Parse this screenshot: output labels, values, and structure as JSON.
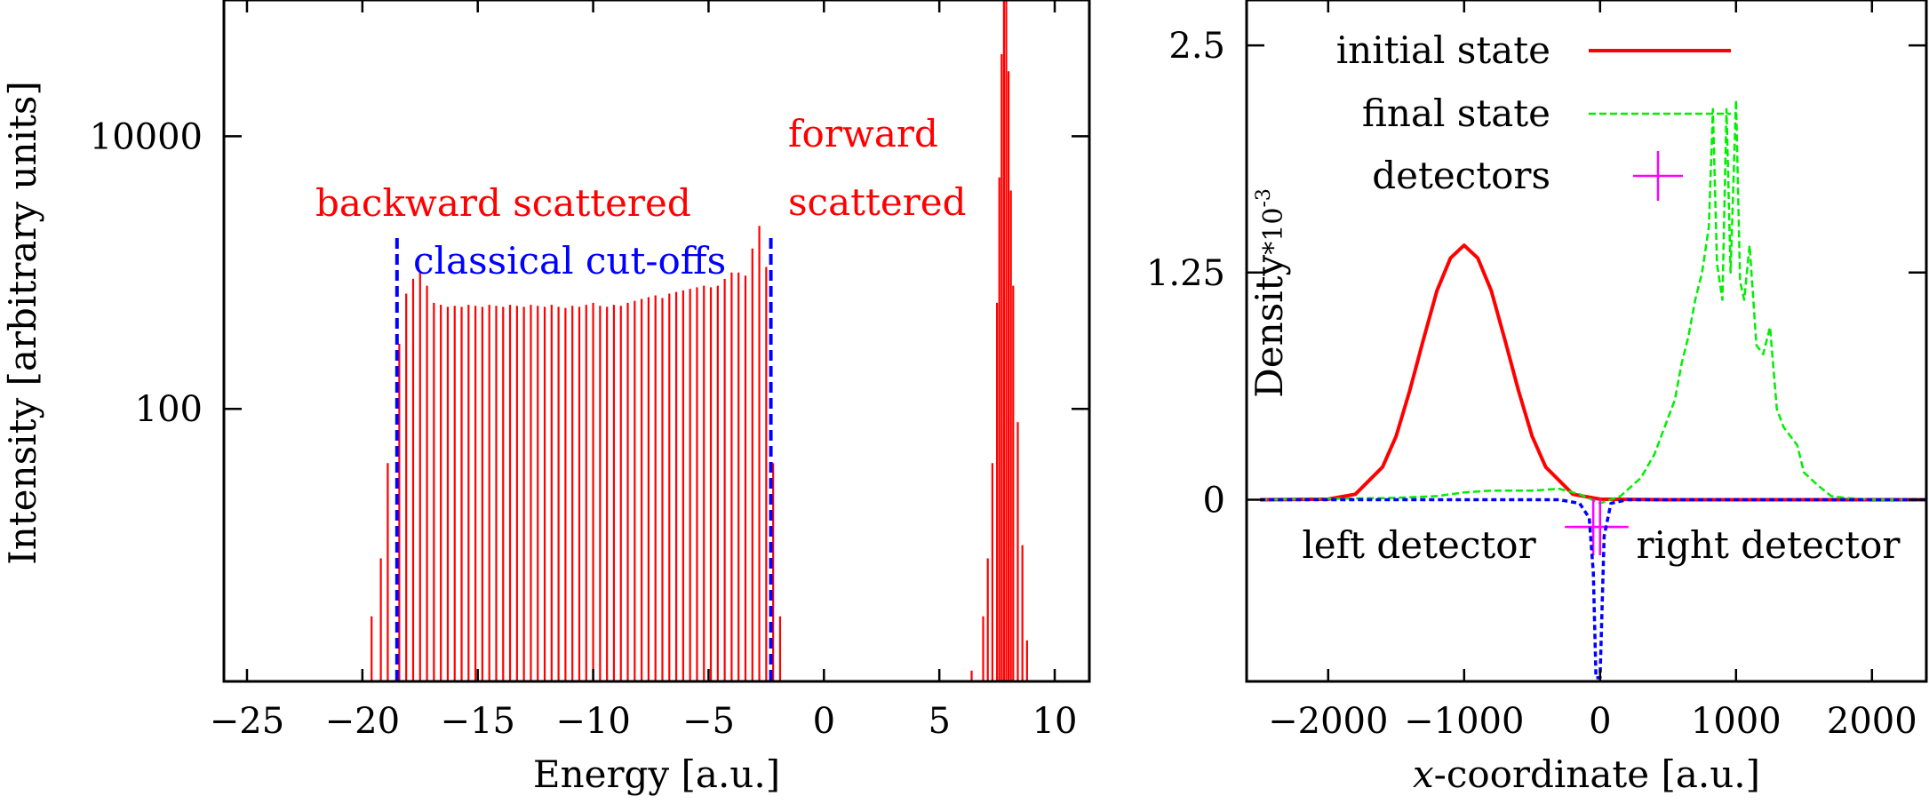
{
  "chart_data": [
    {
      "type": "bar",
      "xlabel": "Energy [a.u.]",
      "ylabel": "Intensity [arbitrary units]",
      "xlim": [
        -26,
        11.5
      ],
      "ylim": [
        1,
        100000
      ],
      "log_y": true,
      "x_ticks": [
        "−25",
        "−20",
        "−15",
        "−10",
        "−5",
        "0",
        "5",
        "10"
      ],
      "x_tick_values": [
        -25,
        -20,
        -15,
        -10,
        -5,
        0,
        5,
        10
      ],
      "y_ticks": [
        "100",
        "10000"
      ],
      "y_tick_values": [
        100,
        10000
      ],
      "annotations": {
        "backward": "backward scattered",
        "cutoffs": "classical cut-offs",
        "forward_1": "forward",
        "forward_2": "scattered"
      },
      "cutoff_lines": [
        -18.5,
        -2.3
      ],
      "series": [
        {
          "color": "#ff0000",
          "backward_peaks": [
            {
              "x": -19.6,
              "y": 3
            },
            {
              "x": -19.2,
              "y": 8
            },
            {
              "x": -18.9,
              "y": 40
            },
            {
              "x": -18.4,
              "y": 300
            },
            {
              "x": -18.1,
              "y": 700
            },
            {
              "x": -17.8,
              "y": 900
            },
            {
              "x": -17.5,
              "y": 1000
            },
            {
              "x": -17.2,
              "y": 800
            },
            {
              "x": -16.9,
              "y": 600
            },
            {
              "x": -16.6,
              "y": 580
            },
            {
              "x": -16.3,
              "y": 560
            },
            {
              "x": -16.0,
              "y": 570
            },
            {
              "x": -15.7,
              "y": 560
            },
            {
              "x": -15.4,
              "y": 580
            },
            {
              "x": -15.1,
              "y": 570
            },
            {
              "x": -14.8,
              "y": 560
            },
            {
              "x": -14.5,
              "y": 580
            },
            {
              "x": -14.2,
              "y": 570
            },
            {
              "x": -13.9,
              "y": 560
            },
            {
              "x": -13.6,
              "y": 580
            },
            {
              "x": -13.3,
              "y": 570
            },
            {
              "x": -13.0,
              "y": 560
            },
            {
              "x": -12.7,
              "y": 580
            },
            {
              "x": -12.4,
              "y": 570
            },
            {
              "x": -12.1,
              "y": 560
            },
            {
              "x": -11.8,
              "y": 580
            },
            {
              "x": -11.5,
              "y": 560
            },
            {
              "x": -11.2,
              "y": 550
            },
            {
              "x": -10.9,
              "y": 570
            },
            {
              "x": -10.6,
              "y": 560
            },
            {
              "x": -10.3,
              "y": 580
            },
            {
              "x": -10.0,
              "y": 600
            },
            {
              "x": -9.7,
              "y": 570
            },
            {
              "x": -9.4,
              "y": 560
            },
            {
              "x": -9.1,
              "y": 580
            },
            {
              "x": -8.8,
              "y": 570
            },
            {
              "x": -8.5,
              "y": 600
            },
            {
              "x": -8.2,
              "y": 620
            },
            {
              "x": -7.9,
              "y": 640
            },
            {
              "x": -7.6,
              "y": 660
            },
            {
              "x": -7.3,
              "y": 680
            },
            {
              "x": -7.0,
              "y": 650
            },
            {
              "x": -6.7,
              "y": 700
            },
            {
              "x": -6.4,
              "y": 720
            },
            {
              "x": -6.1,
              "y": 740
            },
            {
              "x": -5.8,
              "y": 760
            },
            {
              "x": -5.5,
              "y": 780
            },
            {
              "x": -5.2,
              "y": 800
            },
            {
              "x": -4.9,
              "y": 780
            },
            {
              "x": -4.6,
              "y": 800
            },
            {
              "x": -4.3,
              "y": 900
            },
            {
              "x": -4.0,
              "y": 1000
            },
            {
              "x": -3.7,
              "y": 1000
            },
            {
              "x": -3.4,
              "y": 950
            },
            {
              "x": -3.1,
              "y": 1500
            },
            {
              "x": -2.8,
              "y": 2200
            },
            {
              "x": -2.5,
              "y": 1100
            },
            {
              "x": -2.2,
              "y": 40
            },
            {
              "x": -1.9,
              "y": 3
            }
          ],
          "forward_peaks": [
            {
              "x": 6.4,
              "y": 1.2
            },
            {
              "x": 6.9,
              "y": 3
            },
            {
              "x": 7.1,
              "y": 8
            },
            {
              "x": 7.3,
              "y": 40
            },
            {
              "x": 7.5,
              "y": 600
            },
            {
              "x": 7.6,
              "y": 5000
            },
            {
              "x": 7.7,
              "y": 40000
            },
            {
              "x": 7.8,
              "y": 120000
            },
            {
              "x": 7.9,
              "y": 100000
            },
            {
              "x": 8.0,
              "y": 30000
            },
            {
              "x": 8.1,
              "y": 4000
            },
            {
              "x": 8.2,
              "y": 800
            },
            {
              "x": 8.4,
              "y": 80
            },
            {
              "x": 8.6,
              "y": 10
            },
            {
              "x": 8.8,
              "y": 2
            }
          ]
        }
      ]
    },
    {
      "type": "line",
      "xlabel": "x-coordinate [a.u.]",
      "ylabel": "Density*10^-3",
      "ylabel_main": "Density",
      "ylabel_sup": "*10",
      "ylabel_exp": "-3",
      "xlim": [
        -2600,
        2400
      ],
      "ylim": [
        -1.0,
        2.75
      ],
      "x_ticks": [
        "−2000",
        "−1000",
        "0",
        "1000",
        "2000"
      ],
      "x_tick_values": [
        -2000,
        -1000,
        0,
        1000,
        2000
      ],
      "y_ticks": [
        "0",
        "1.25",
        "2.5"
      ],
      "y_tick_values": [
        0,
        1.25,
        2.5
      ],
      "legend_position": "top",
      "legend": [
        {
          "label": "initial state",
          "color": "#ff0000",
          "style": "solid"
        },
        {
          "label": "final state",
          "color": "#00ee00",
          "style": "dashed"
        },
        {
          "label": "detectors",
          "color": "#ff00ff",
          "style": "point"
        }
      ],
      "detector_labels": {
        "left": "left detector",
        "right": "right detector"
      },
      "series": [
        {
          "name": "initial state",
          "color": "#ff0000",
          "x": [
            -2500,
            -2000,
            -1800,
            -1600,
            -1500,
            -1400,
            -1300,
            -1200,
            -1100,
            -1000,
            -900,
            -800,
            -700,
            -600,
            -500,
            -400,
            -200,
            0,
            500,
            2400
          ],
          "y": [
            0,
            0.003,
            0.03,
            0.18,
            0.35,
            0.6,
            0.88,
            1.15,
            1.33,
            1.4,
            1.33,
            1.15,
            0.88,
            0.6,
            0.35,
            0.18,
            0.03,
            0.003,
            0,
            0
          ]
        },
        {
          "name": "final state",
          "color": "#00ee00",
          "x": [
            -2500,
            -1500,
            -1200,
            -1000,
            -800,
            -500,
            -300,
            -150,
            0,
            150,
            300,
            400,
            500,
            550,
            600,
            650,
            700,
            750,
            800,
            830,
            860,
            900,
            930,
            960,
            1000,
            1030,
            1060,
            1100,
            1150,
            1200,
            1250,
            1300,
            1350,
            1400,
            1450,
            1500,
            1600,
            1700,
            1800,
            2000,
            2400
          ],
          "y": [
            0,
            0.01,
            0.02,
            0.04,
            0.05,
            0.05,
            0.06,
            0.03,
            -0.02,
            0.02,
            0.12,
            0.25,
            0.45,
            0.55,
            0.75,
            0.9,
            1.1,
            1.25,
            1.5,
            2.15,
            1.3,
            1.1,
            2.15,
            1.25,
            2.2,
            1.2,
            1.1,
            1.4,
            0.85,
            0.8,
            0.95,
            0.5,
            0.4,
            0.35,
            0.3,
            0.15,
            0.08,
            0.02,
            0.01,
            0,
            0
          ]
        },
        {
          "name": "detectors",
          "color": "#ff00ff",
          "x": [
            -50,
            0
          ],
          "y": [
            -0.15,
            -0.15
          ]
        },
        {
          "name": "dip",
          "color": "#0000ff",
          "x": [
            -2500,
            -300,
            -150,
            -80,
            -50,
            -30,
            0,
            30,
            80,
            200,
            2400
          ],
          "y": [
            0,
            0,
            -0.02,
            -0.1,
            -0.4,
            -0.98,
            -0.98,
            -0.2,
            -0.02,
            0,
            0
          ]
        }
      ]
    }
  ]
}
